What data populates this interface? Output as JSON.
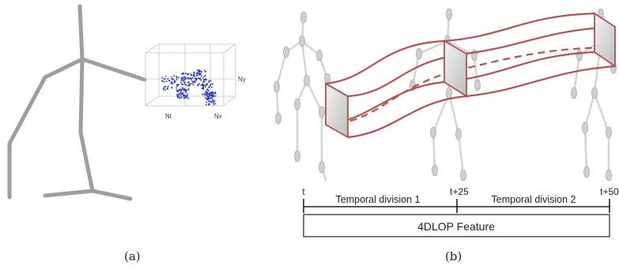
{
  "panel_a": {
    "caption": "(a)",
    "cube_axes": {
      "n_y": "Ny",
      "n_t": "Nt",
      "n_x": "Nx"
    }
  },
  "panel_b": {
    "caption": "(b)",
    "timeline": {
      "ticks": [
        "t",
        "t+25",
        "t+50"
      ],
      "divisions": [
        "Temporal division 1",
        "Temporal division 2"
      ]
    },
    "feature_box": "4DLOP Feature"
  },
  "colors": {
    "skeleton_dark": "#9e9e9e",
    "skeleton_light": "#d2d2d2",
    "points": "#2233cc",
    "tube": "#b5504f",
    "text": "#222222"
  }
}
